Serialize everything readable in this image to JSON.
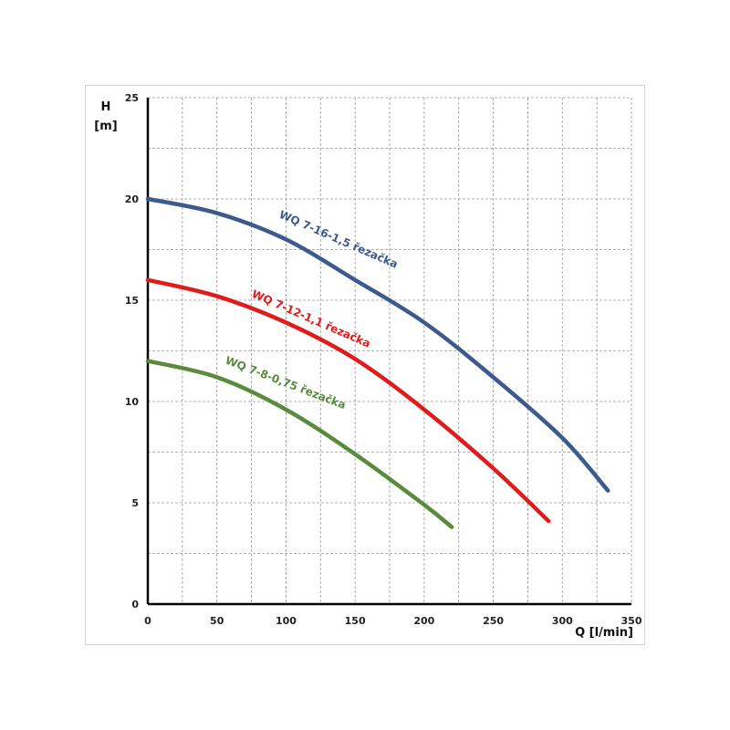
{
  "chart_data": {
    "type": "line",
    "title": "",
    "xlabel": "Q [l/min]",
    "ylabel_line1": "H",
    "ylabel_line2": "[m]",
    "xlim": [
      0,
      350
    ],
    "ylim": [
      0,
      25
    ],
    "x_ticks": [
      0,
      50,
      100,
      150,
      200,
      250,
      300,
      350
    ],
    "y_ticks": [
      0,
      5,
      10,
      15,
      20,
      25
    ],
    "grid": true,
    "legend": "inline labels",
    "series": [
      {
        "name": "WQ 7-16-1,5 řezačka",
        "color": "#3d5a8f",
        "x": [
          0,
          50,
          100,
          150,
          200,
          250,
          300,
          333
        ],
        "y": [
          20.0,
          19.3,
          18.0,
          16.0,
          13.9,
          11.2,
          8.2,
          5.6
        ]
      },
      {
        "name": "WQ 7-12-1,1 řezačka",
        "color": "#e01b1b",
        "x": [
          0,
          50,
          100,
          150,
          200,
          250,
          290
        ],
        "y": [
          16.0,
          15.2,
          13.9,
          12.1,
          9.6,
          6.7,
          4.1
        ]
      },
      {
        "name": "WQ 7-8-0,75 řezačka",
        "color": "#5a8a3c",
        "x": [
          0,
          50,
          100,
          150,
          200,
          220
        ],
        "y": [
          12.0,
          11.2,
          9.6,
          7.4,
          4.9,
          3.8
        ]
      }
    ]
  }
}
